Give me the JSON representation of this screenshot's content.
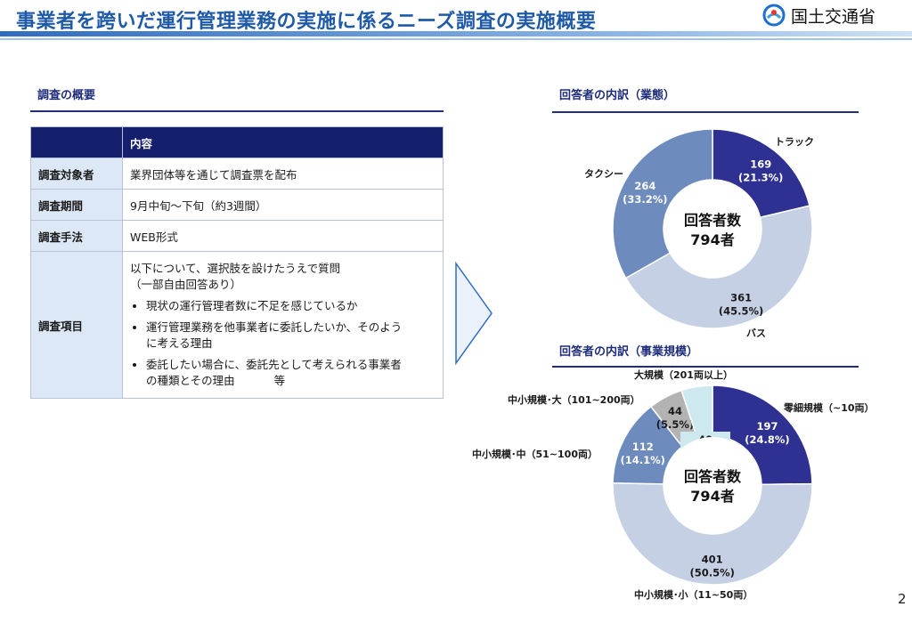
{
  "header": {
    "title": "事業者を跨いだ運行管理業務の実施に係るニーズ調査の実施概要",
    "ministry": "国土交通省",
    "logo_icon": "mlit-logo-icon"
  },
  "overview": {
    "section_title": "調査の概要",
    "column_header": "内容",
    "rows": [
      {
        "key": "調査対象者",
        "value": "業界団体等を通じて調査票を配布"
      },
      {
        "key": "調査期間",
        "value": "9月中旬～下旬（約3週間）"
      },
      {
        "key": "調査手法",
        "value": "WEB形式"
      }
    ],
    "items": {
      "key": "調査項目",
      "intro_line1": "以下について、選択肢を設けたうえで質問",
      "intro_line2": "（一部自由回答あり）",
      "bullets": [
        {
          "line1": "現状の運行管理者数に不足を感じているか",
          "line2": ""
        },
        {
          "line1": "運行管理業務を他事業者に委託したいか、そのよう",
          "line2": "に考える理由"
        },
        {
          "line1": "委託したい場合に、委託先として考えられる事業者",
          "line2": "の種類とその理由",
          "suffix": "等"
        }
      ]
    }
  },
  "chart_data": [
    {
      "type": "pie",
      "title": "回答者の内訳（業態）",
      "center_label": "回答者数",
      "center_value": "794者",
      "slices": [
        {
          "label": "トラック",
          "value": 169,
          "percent": "21.3%",
          "color": "#2e3192"
        },
        {
          "label": "バス",
          "value": 361,
          "percent": "45.5%",
          "color": "#c5d0e4"
        },
        {
          "label": "タクシー",
          "value": 264,
          "percent": "33.2%",
          "color": "#6d8cbd"
        }
      ]
    },
    {
      "type": "pie",
      "title": "回答者の内訳（事業規模）",
      "center_label": "回答者数",
      "center_value": "794者",
      "slices": [
        {
          "label": "零細規模（~10両）",
          "value": 197,
          "percent": "24.8%",
          "color": "#2e3192"
        },
        {
          "label": "中小規模･小（11~50両）",
          "value": 401,
          "percent": "50.5%",
          "color": "#c5d0e4"
        },
        {
          "label": "中小規模･中（51~100両）",
          "value": 112,
          "percent": "14.1%",
          "color": "#6d8cbd"
        },
        {
          "label": "中小規模･大（101~200両）",
          "value": 44,
          "percent": "5.5%",
          "color": "#b3b3b3"
        },
        {
          "label": "大規模（201両以上）",
          "value": 40,
          "percent": "5.0%",
          "color": "#cde8ef"
        }
      ]
    }
  ],
  "page_number": "2"
}
